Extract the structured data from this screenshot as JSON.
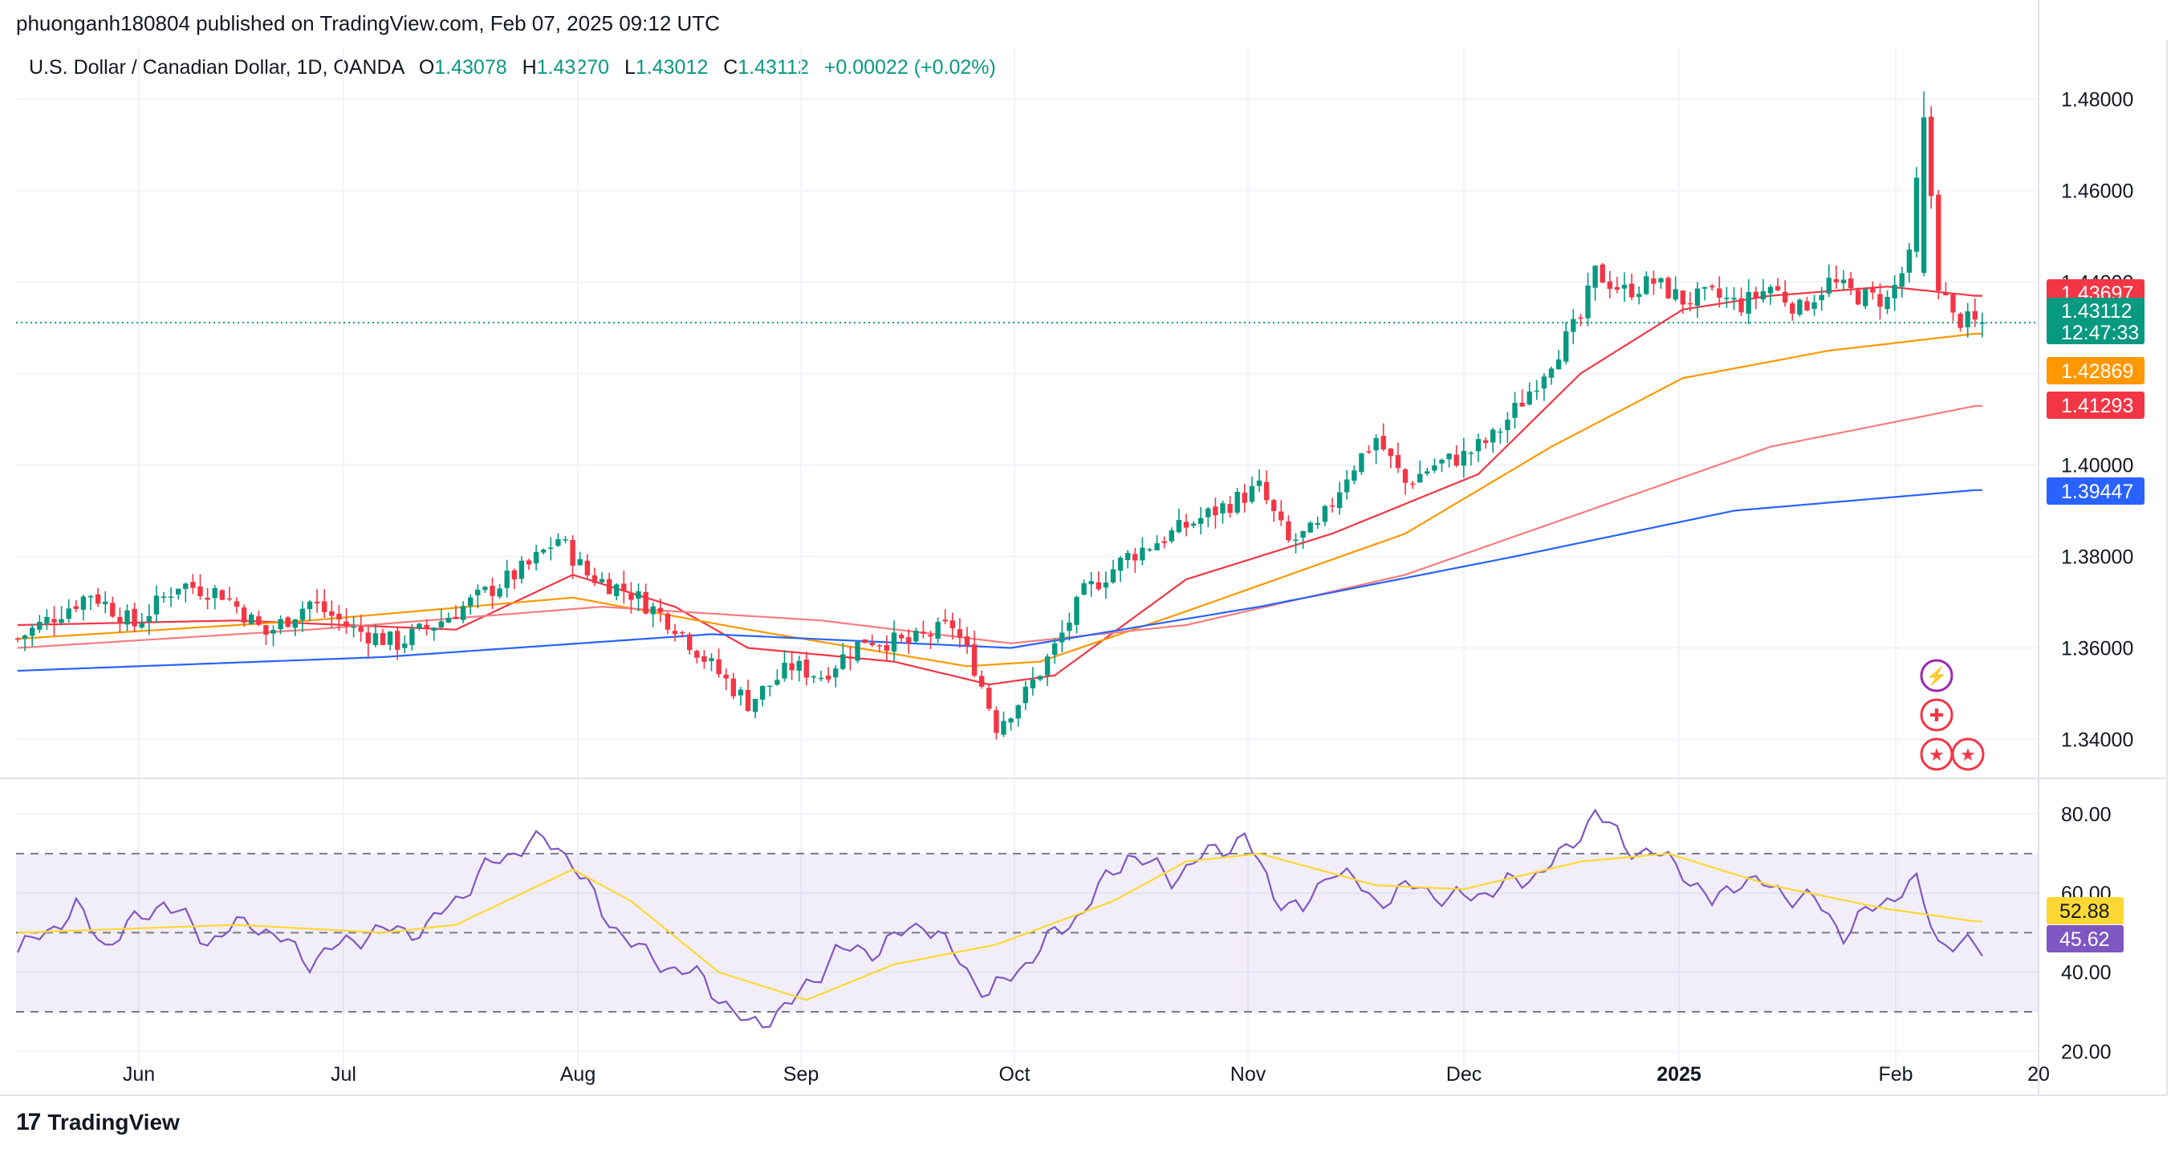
{
  "header": {
    "published_by": "phuonganh180804 published on TradingView.com, Feb 07, 2025 09:12 UTC"
  },
  "legend": {
    "symbol": "U.S. Dollar / Canadian Dollar, 1D, OANDA",
    "o_label": "O",
    "o_value": "1.43078",
    "h_label": "H",
    "h_value": "1.43270",
    "l_label": "L",
    "l_value": "1.43012",
    "c_label": "C",
    "c_value": "1.43112",
    "change": "+0.00022 (+0.02%)"
  },
  "footer": {
    "brand": "TradingView"
  },
  "colors": {
    "up": "#089981",
    "down": "#f23645",
    "grid": "#f0f3fa",
    "ma_fast": "#f23645",
    "ma_mid": "#ff9800",
    "ma_slow": "#f77c80",
    "ma_long": "#2962ff",
    "rsi": "#7e57c2",
    "rsi_ma": "#fdd835",
    "rsi_band": "#7e57c2"
  },
  "chart_data": [
    {
      "type": "candlestick",
      "title": "U.S. Dollar / Canadian Dollar, 1D, OANDA",
      "ylim": [
        1.335,
        1.485
      ],
      "y_ticks": [
        "1.48000",
        "1.46000",
        "1.44000",
        "1.40000",
        "1.38000",
        "1.36000",
        "1.34000"
      ],
      "x_ticks": [
        "Jun",
        "Jul",
        "Aug",
        "Sep",
        "Oct",
        "Nov",
        "Dec",
        "2025",
        "Feb",
        "20"
      ],
      "last_price": 1.43112,
      "price_labels": [
        {
          "text": "1.43697",
          "value": 1.43697,
          "color": "#f23645"
        },
        {
          "text": "1.43112",
          "value": 1.43112,
          "color": "#089981",
          "sub": "12:47:33"
        },
        {
          "text": "1.42869",
          "value": 1.42869,
          "color": "#ff9800"
        },
        {
          "text": "1.41293",
          "value": 1.41293,
          "color": "#f23645"
        },
        {
          "text": "1.39447",
          "value": 1.39447,
          "color": "#2962ff"
        }
      ],
      "close_anchors": [
        [
          0,
          1.362
        ],
        [
          6,
          1.368
        ],
        [
          10,
          1.372
        ],
        [
          16,
          1.365
        ],
        [
          22,
          1.374
        ],
        [
          28,
          1.372
        ],
        [
          34,
          1.363
        ],
        [
          40,
          1.37
        ],
        [
          46,
          1.364
        ],
        [
          52,
          1.361
        ],
        [
          58,
          1.366
        ],
        [
          64,
          1.372
        ],
        [
          70,
          1.378
        ],
        [
          74,
          1.384
        ],
        [
          76,
          1.38
        ],
        [
          78,
          1.376
        ],
        [
          84,
          1.372
        ],
        [
          90,
          1.365
        ],
        [
          95,
          1.356
        ],
        [
          100,
          1.348
        ],
        [
          106,
          1.356
        ],
        [
          110,
          1.354
        ],
        [
          116,
          1.362
        ],
        [
          122,
          1.361
        ],
        [
          128,
          1.365
        ],
        [
          131,
          1.356
        ],
        [
          134,
          1.343
        ],
        [
          138,
          1.35
        ],
        [
          142,
          1.36
        ],
        [
          146,
          1.372
        ],
        [
          152,
          1.38
        ],
        [
          158,
          1.385
        ],
        [
          164,
          1.39
        ],
        [
          170,
          1.395
        ],
        [
          174,
          1.383
        ],
        [
          178,
          1.386
        ],
        [
          182,
          1.398
        ],
        [
          186,
          1.406
        ],
        [
          190,
          1.396
        ],
        [
          194,
          1.4
        ],
        [
          198,
          1.402
        ],
        [
          202,
          1.406
        ],
        [
          206,
          1.414
        ],
        [
          210,
          1.423
        ],
        [
          214,
          1.432
        ],
        [
          216,
          1.442
        ],
        [
          220,
          1.438
        ],
        [
          224,
          1.44
        ],
        [
          228,
          1.436
        ],
        [
          232,
          1.437
        ],
        [
          236,
          1.435
        ],
        [
          240,
          1.439
        ],
        [
          244,
          1.434
        ],
        [
          248,
          1.44
        ],
        [
          252,
          1.437
        ],
        [
          256,
          1.436
        ],
        [
          259,
          1.445
        ],
        [
          261,
          1.478
        ],
        [
          263,
          1.44
        ],
        [
          265,
          1.432
        ],
        [
          268,
          1.4311
        ]
      ],
      "ma_lines": [
        {
          "name": "MA fast",
          "color": "#f23645",
          "anchors": [
            [
              0,
              1.365
            ],
            [
              30,
              1.366
            ],
            [
              60,
              1.364
            ],
            [
              76,
              1.376
            ],
            [
              90,
              1.369
            ],
            [
              100,
              1.36
            ],
            [
              120,
              1.357
            ],
            [
              133,
              1.352
            ],
            [
              142,
              1.354
            ],
            [
              160,
              1.375
            ],
            [
              180,
              1.385
            ],
            [
              200,
              1.398
            ],
            [
              214,
              1.42
            ],
            [
              228,
              1.434
            ],
            [
              240,
              1.437
            ],
            [
              256,
              1.439
            ],
            [
              268,
              1.437
            ]
          ]
        },
        {
          "name": "MA mid",
          "color": "#ff9800",
          "anchors": [
            [
              0,
              1.362
            ],
            [
              40,
              1.366
            ],
            [
              76,
              1.371
            ],
            [
              100,
              1.364
            ],
            [
              130,
              1.356
            ],
            [
              140,
              1.357
            ],
            [
              160,
              1.368
            ],
            [
              190,
              1.385
            ],
            [
              210,
              1.404
            ],
            [
              228,
              1.419
            ],
            [
              248,
              1.425
            ],
            [
              268,
              1.4287
            ]
          ]
        },
        {
          "name": "MA slow",
          "color": "#f77c80",
          "anchors": [
            [
              0,
              1.36
            ],
            [
              40,
              1.364
            ],
            [
              80,
              1.369
            ],
            [
              110,
              1.366
            ],
            [
              136,
              1.361
            ],
            [
              160,
              1.365
            ],
            [
              190,
              1.376
            ],
            [
              215,
              1.39
            ],
            [
              240,
              1.404
            ],
            [
              268,
              1.4129
            ]
          ]
        },
        {
          "name": "MA long",
          "color": "#2962ff",
          "anchors": [
            [
              0,
              1.355
            ],
            [
              50,
              1.358
            ],
            [
              95,
              1.363
            ],
            [
              136,
              1.36
            ],
            [
              170,
              1.369
            ],
            [
              205,
              1.38
            ],
            [
              235,
              1.39
            ],
            [
              268,
              1.3945
            ]
          ]
        }
      ]
    },
    {
      "type": "line",
      "title": "RSI",
      "ylim": [
        16,
        86
      ],
      "y_ticks": [
        "80.00",
        "60.00",
        "40.00",
        "20.00"
      ],
      "bands": {
        "upper": 70,
        "middle": 50,
        "lower": 30
      },
      "current": [
        {
          "text": "52.88",
          "value": 52.88,
          "color": "#fdd835",
          "text_color": "#131722"
        },
        {
          "text": "45.62",
          "value": 45.62,
          "color": "#7e57c2",
          "text_color": "#ffffff"
        }
      ],
      "series": [
        {
          "name": "RSI",
          "color": "#7e57c2",
          "anchors": [
            [
              0,
              45
            ],
            [
              8,
              56
            ],
            [
              12,
              47
            ],
            [
              20,
              58
            ],
            [
              26,
              48
            ],
            [
              32,
              53
            ],
            [
              40,
              43
            ],
            [
              48,
              50
            ],
            [
              56,
              51
            ],
            [
              64,
              66
            ],
            [
              70,
              73
            ],
            [
              74,
              72
            ],
            [
              76,
              68
            ],
            [
              80,
              55
            ],
            [
              86,
              44
            ],
            [
              94,
              38
            ],
            [
              100,
              26
            ],
            [
              106,
              32
            ],
            [
              112,
              45
            ],
            [
              118,
              46
            ],
            [
              124,
              53
            ],
            [
              128,
              45
            ],
            [
              133,
              34
            ],
            [
              140,
              46
            ],
            [
              146,
              56
            ],
            [
              152,
              70
            ],
            [
              158,
              64
            ],
            [
              164,
              71
            ],
            [
              168,
              74
            ],
            [
              172,
              60
            ],
            [
              176,
              55
            ],
            [
              180,
              67
            ],
            [
              186,
              58
            ],
            [
              192,
              62
            ],
            [
              196,
              58
            ],
            [
              200,
              60
            ],
            [
              206,
              63
            ],
            [
              212,
              70
            ],
            [
              216,
              81
            ],
            [
              220,
              72
            ],
            [
              224,
              70
            ],
            [
              228,
              66
            ],
            [
              232,
              57
            ],
            [
              236,
              64
            ],
            [
              240,
              61
            ],
            [
              246,
              58
            ],
            [
              250,
              50
            ],
            [
              254,
              56
            ],
            [
              258,
              61
            ],
            [
              260,
              62
            ],
            [
              263,
              48
            ],
            [
              268,
              46
            ]
          ]
        },
        {
          "name": "RSI MA",
          "color": "#fdd835",
          "anchors": [
            [
              0,
              50
            ],
            [
              30,
              52
            ],
            [
              50,
              50
            ],
            [
              60,
              52
            ],
            [
              76,
              66
            ],
            [
              84,
              58
            ],
            [
              96,
              40
            ],
            [
              108,
              33
            ],
            [
              120,
              42
            ],
            [
              134,
              47
            ],
            [
              150,
              58
            ],
            [
              160,
              68
            ],
            [
              170,
              70
            ],
            [
              186,
              62
            ],
            [
              198,
              61
            ],
            [
              214,
              68
            ],
            [
              226,
              70
            ],
            [
              240,
              62
            ],
            [
              256,
              56
            ],
            [
              268,
              52.88
            ]
          ]
        }
      ]
    }
  ]
}
